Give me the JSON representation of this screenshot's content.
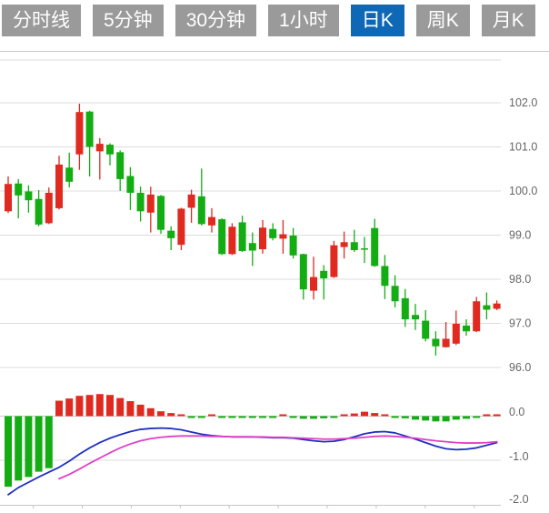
{
  "tabs": {
    "active_label": "日K",
    "items": [
      {
        "label": "分时线"
      },
      {
        "label": "5分钟"
      },
      {
        "label": "30分钟"
      },
      {
        "label": "1小时"
      },
      {
        "label": "日K"
      },
      {
        "label": "周K"
      },
      {
        "label": "月K"
      }
    ]
  },
  "chart_data": {
    "type": "candlestick_with_macd",
    "legend_position": "none",
    "grid": "horizontal",
    "price_panel": {
      "ylim": [
        95.6,
        102.6
      ],
      "y_axis_labels": [
        "102.0",
        "101.0",
        "100.0",
        "99.0",
        "98.0",
        "97.0",
        "96.0"
      ],
      "y_axis_values": [
        102.0,
        101.0,
        100.0,
        99.0,
        98.0,
        97.0,
        96.0
      ],
      "up_color_rule": "red = close >= open (Chinese convention), green = close < open",
      "candles": [
        {
          "o": 99.54,
          "h": 100.33,
          "l": 99.5,
          "c": 100.16
        },
        {
          "o": 100.17,
          "h": 100.27,
          "l": 99.38,
          "c": 99.9
        },
        {
          "o": 99.99,
          "h": 100.13,
          "l": 99.51,
          "c": 99.79
        },
        {
          "o": 99.82,
          "h": 100.02,
          "l": 99.2,
          "c": 99.24
        },
        {
          "o": 99.27,
          "h": 100.08,
          "l": 99.25,
          "c": 99.96
        },
        {
          "o": 99.61,
          "h": 100.8,
          "l": 99.58,
          "c": 100.6
        },
        {
          "o": 100.53,
          "h": 100.87,
          "l": 100.08,
          "c": 100.21
        },
        {
          "o": 100.83,
          "h": 101.98,
          "l": 100.48,
          "c": 101.79
        },
        {
          "o": 101.8,
          "h": 101.82,
          "l": 100.33,
          "c": 101.0
        },
        {
          "o": 100.9,
          "h": 101.2,
          "l": 100.26,
          "c": 101.07
        },
        {
          "o": 101.05,
          "h": 101.08,
          "l": 100.58,
          "c": 100.83
        },
        {
          "o": 100.88,
          "h": 100.92,
          "l": 100.0,
          "c": 100.27
        },
        {
          "o": 100.34,
          "h": 100.54,
          "l": 99.57,
          "c": 99.96
        },
        {
          "o": 99.96,
          "h": 100.1,
          "l": 99.31,
          "c": 99.54
        },
        {
          "o": 99.51,
          "h": 100.1,
          "l": 99.06,
          "c": 99.92
        },
        {
          "o": 99.89,
          "h": 99.91,
          "l": 99.03,
          "c": 99.12
        },
        {
          "o": 99.1,
          "h": 99.2,
          "l": 98.66,
          "c": 98.93
        },
        {
          "o": 98.78,
          "h": 99.62,
          "l": 98.66,
          "c": 99.6
        },
        {
          "o": 99.62,
          "h": 100.03,
          "l": 99.28,
          "c": 99.92
        },
        {
          "o": 99.88,
          "h": 100.51,
          "l": 99.22,
          "c": 99.25
        },
        {
          "o": 99.22,
          "h": 99.61,
          "l": 99.06,
          "c": 99.41
        },
        {
          "o": 99.36,
          "h": 99.38,
          "l": 98.55,
          "c": 98.57
        },
        {
          "o": 98.57,
          "h": 99.27,
          "l": 98.55,
          "c": 99.19
        },
        {
          "o": 99.29,
          "h": 99.44,
          "l": 98.62,
          "c": 98.64
        },
        {
          "o": 98.82,
          "h": 99.06,
          "l": 98.3,
          "c": 98.65
        },
        {
          "o": 98.68,
          "h": 99.34,
          "l": 98.58,
          "c": 99.17
        },
        {
          "o": 99.14,
          "h": 99.27,
          "l": 98.88,
          "c": 98.93
        },
        {
          "o": 98.92,
          "h": 99.34,
          "l": 98.58,
          "c": 99.02
        },
        {
          "o": 98.99,
          "h": 99.16,
          "l": 98.47,
          "c": 98.54
        },
        {
          "o": 98.57,
          "h": 98.58,
          "l": 97.54,
          "c": 97.77
        },
        {
          "o": 97.74,
          "h": 98.51,
          "l": 97.54,
          "c": 98.05
        },
        {
          "o": 98.19,
          "h": 98.32,
          "l": 97.54,
          "c": 98.02
        },
        {
          "o": 98.05,
          "h": 98.87,
          "l": 98.03,
          "c": 98.77
        },
        {
          "o": 98.73,
          "h": 99.08,
          "l": 98.47,
          "c": 98.84
        },
        {
          "o": 98.84,
          "h": 99.12,
          "l": 98.62,
          "c": 98.66
        },
        {
          "o": 98.7,
          "h": 98.96,
          "l": 98.37,
          "c": 98.67
        },
        {
          "o": 99.16,
          "h": 99.37,
          "l": 98.28,
          "c": 98.3
        },
        {
          "o": 98.3,
          "h": 98.55,
          "l": 97.55,
          "c": 97.85
        },
        {
          "o": 97.85,
          "h": 98.09,
          "l": 97.36,
          "c": 97.5
        },
        {
          "o": 97.57,
          "h": 97.78,
          "l": 96.92,
          "c": 97.09
        },
        {
          "o": 97.19,
          "h": 97.44,
          "l": 96.85,
          "c": 97.09
        },
        {
          "o": 97.06,
          "h": 97.3,
          "l": 96.59,
          "c": 96.65
        },
        {
          "o": 96.65,
          "h": 96.82,
          "l": 96.27,
          "c": 96.48
        },
        {
          "o": 96.46,
          "h": 97.03,
          "l": 96.45,
          "c": 96.65
        },
        {
          "o": 96.54,
          "h": 97.29,
          "l": 96.51,
          "c": 96.99
        },
        {
          "o": 96.95,
          "h": 97.09,
          "l": 96.72,
          "c": 96.82
        },
        {
          "o": 96.82,
          "h": 97.6,
          "l": 96.8,
          "c": 97.5
        },
        {
          "o": 97.41,
          "h": 97.7,
          "l": 97.09,
          "c": 97.31
        },
        {
          "o": 97.33,
          "h": 97.52,
          "l": 97.3,
          "c": 97.45
        }
      ]
    },
    "macd_panel": {
      "ylim": [
        -2.1,
        0.6
      ],
      "y_axis_labels": [
        "0.0",
        "-1.0",
        "-2.0"
      ],
      "y_axis_values": [
        0.0,
        -1.0,
        -2.0
      ],
      "histogram_color_rule": "red = positive, green = negative",
      "histogram": [
        -1.6,
        -1.46,
        -1.38,
        -1.26,
        -1.18,
        0.35,
        0.4,
        0.46,
        0.48,
        0.5,
        0.48,
        0.41,
        0.34,
        0.26,
        0.18,
        0.11,
        0.07,
        0.03,
        -0.03,
        -0.04,
        0.02,
        -0.02,
        -0.04,
        -0.04,
        -0.04,
        -0.04,
        -0.01,
        0.02,
        -0.01,
        -0.06,
        -0.06,
        -0.05,
        -0.01,
        0.04,
        0.06,
        0.1,
        0.07,
        0.03,
        -0.03,
        -0.05,
        -0.08,
        -0.1,
        -0.12,
        -0.12,
        -0.08,
        -0.06,
        -0.02,
        0.04,
        0.03
      ],
      "dif_line": [
        -1.78,
        -1.62,
        -1.5,
        -1.38,
        -1.27,
        -1.16,
        -1.02,
        -0.86,
        -0.72,
        -0.6,
        -0.5,
        -0.42,
        -0.35,
        -0.3,
        -0.28,
        -0.27,
        -0.28,
        -0.31,
        -0.36,
        -0.41,
        -0.44,
        -0.46,
        -0.47,
        -0.47,
        -0.47,
        -0.48,
        -0.49,
        -0.49,
        -0.5,
        -0.53,
        -0.56,
        -0.58,
        -0.57,
        -0.53,
        -0.47,
        -0.4,
        -0.36,
        -0.35,
        -0.38,
        -0.45,
        -0.52,
        -0.6,
        -0.68,
        -0.74,
        -0.76,
        -0.75,
        -0.72,
        -0.66,
        -0.6
      ],
      "dea_line": {
        "start_index": 5,
        "values": [
          -1.42,
          -1.32,
          -1.2,
          -1.07,
          -0.95,
          -0.83,
          -0.72,
          -0.63,
          -0.56,
          -0.51,
          -0.48,
          -0.46,
          -0.45,
          -0.45,
          -0.45,
          -0.46,
          -0.46,
          -0.47,
          -0.47,
          -0.47,
          -0.47,
          -0.48,
          -0.48,
          -0.49,
          -0.5,
          -0.51,
          -0.52,
          -0.52,
          -0.51,
          -0.5,
          -0.48,
          -0.46,
          -0.45,
          -0.46,
          -0.48,
          -0.5,
          -0.53,
          -0.56,
          -0.58,
          -0.6,
          -0.61,
          -0.61,
          -0.6,
          -0.58
        ]
      }
    },
    "colors": {
      "up_red": "#e02a20",
      "down_green": "#13ad13",
      "dif_line": "#2030c0",
      "dea_line": "#e040c8",
      "grid_line": "#dcdcdc",
      "axis_line": "#c4c4c4",
      "axis_text": "#666666",
      "tab_bg": "#9a9a9a",
      "tab_active_bg": "#0f68b6",
      "tab_text": "#ffffff"
    }
  }
}
